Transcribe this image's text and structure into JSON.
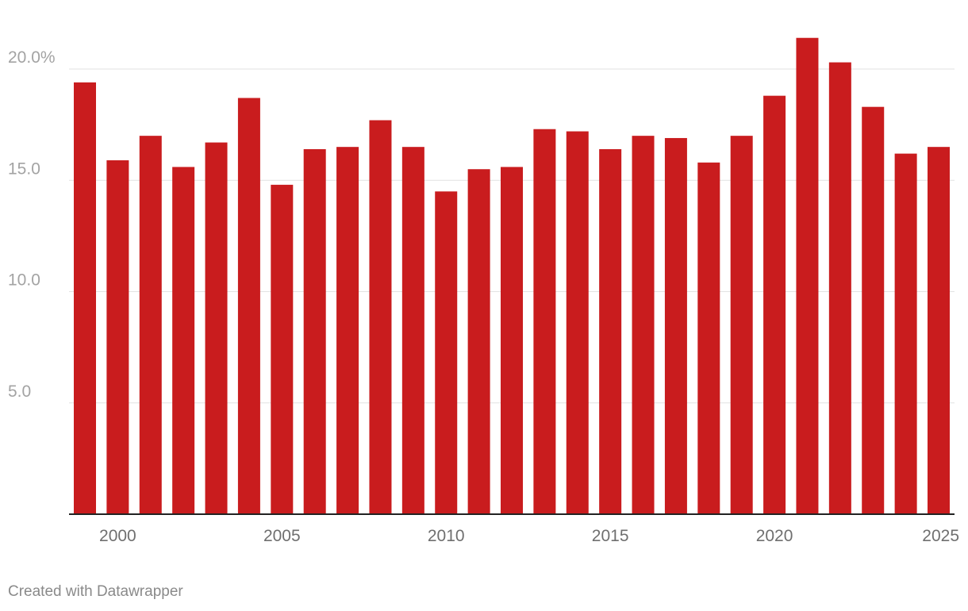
{
  "chart_data": {
    "type": "bar",
    "title": "",
    "xlabel": "",
    "ylabel": "",
    "categories": [
      1999,
      2000,
      2001,
      2002,
      2003,
      2004,
      2005,
      2006,
      2007,
      2008,
      2009,
      2010,
      2011,
      2012,
      2013,
      2014,
      2015,
      2016,
      2017,
      2018,
      2019,
      2020,
      2021,
      2022,
      2023,
      2024,
      2025
    ],
    "values": [
      19.4,
      15.9,
      17.0,
      15.6,
      16.7,
      18.7,
      14.8,
      16.4,
      16.5,
      17.7,
      16.5,
      14.5,
      15.5,
      15.6,
      17.3,
      17.2,
      16.4,
      17.0,
      16.9,
      15.8,
      17.0,
      18.8,
      21.4,
      20.3,
      18.3,
      16.2,
      16.5
    ],
    "ylim": [
      0,
      20
    ],
    "y_ticks": [
      {
        "value": 5,
        "label": "5.0"
      },
      {
        "value": 10,
        "label": "10.0"
      },
      {
        "value": 15,
        "label": "15.0"
      },
      {
        "value": 20,
        "label": "20.0%"
      }
    ],
    "x_tick_labels": [
      {
        "value": 2000,
        "label": "2000"
      },
      {
        "value": 2005,
        "label": "2005"
      },
      {
        "value": 2010,
        "label": "2010"
      },
      {
        "value": 2015,
        "label": "2015"
      },
      {
        "value": 2020,
        "label": "2020"
      },
      {
        "value": 2025,
        "label": "2025"
      }
    ],
    "grid": true,
    "bar_color": "#c91c1e"
  },
  "footer": {
    "credit": "Created with Datawrapper"
  }
}
